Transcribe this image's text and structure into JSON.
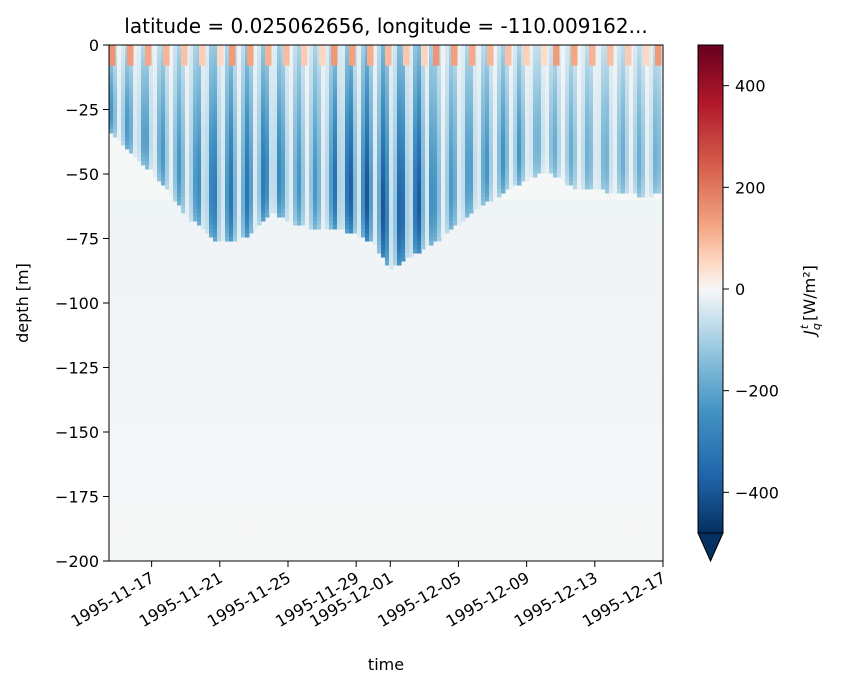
{
  "chart_data": {
    "type": "heatmap",
    "title": "latitude = 0.025062656, longitude = -110.009162...",
    "xlabel": "time",
    "ylabel": "depth [m]",
    "colorbar_label": "J_q^t [W/m²]",
    "colorbar_label_parts": {
      "base": "J",
      "sub": "q",
      "sup": "t",
      "unit": "[W/m²]"
    },
    "colormap": "RdBu_r",
    "colorbar_extend": "min",
    "clim": [
      -480,
      480
    ],
    "xlim": [
      "1995-11-14T12:00",
      "1995-12-17T00:00"
    ],
    "ylim": [
      -200,
      0
    ],
    "x_ticks": [
      "1995-11-17",
      "1995-11-21",
      "1995-11-25",
      "1995-11-29",
      "1995-12-01",
      "1995-12-05",
      "1995-12-09",
      "1995-12-13",
      "1995-12-17"
    ],
    "y_ticks": [
      0,
      -25,
      -50,
      -75,
      -100,
      -125,
      -150,
      -175,
      -200
    ],
    "y_tick_labels": [
      "0",
      "−25",
      "−50",
      "−75",
      "−100",
      "−125",
      "−150",
      "−175",
      "−200"
    ],
    "colorbar_ticks": [
      400,
      200,
      0,
      -200,
      -400
    ],
    "colorbar_tick_labels": [
      "400",
      "200",
      "0",
      "−200",
      "−400"
    ],
    "mixed_layer_base_depth": {
      "x": [
        "1995-11-14T12:00",
        "1995-11-15T12:00",
        "1995-11-17T00:00",
        "1995-11-19T00:00",
        "1995-11-21T00:00",
        "1995-11-22T12:00",
        "1995-11-24T00:00",
        "1995-11-26T00:00",
        "1995-11-28T00:00",
        "1995-11-30T00:00",
        "1995-12-01T00:00",
        "1995-12-02T00:00",
        "1995-12-04T00:00",
        "1995-12-06T00:00",
        "1995-12-08T00:00",
        "1995-12-10T00:00",
        "1995-12-12T00:00",
        "1995-12-14T00:00",
        "1995-12-16T00:00",
        "1995-12-17T00:00"
      ],
      "y": [
        -32,
        -40,
        -48,
        -65,
        -76,
        -74,
        -64,
        -70,
        -70,
        -76,
        -86,
        -82,
        -74,
        -63,
        -55,
        -48,
        -55,
        -56,
        -58,
        -56
      ]
    },
    "surface_heating_band": {
      "depth_range": [
        0,
        -5
      ],
      "value": 150
    },
    "grid": false,
    "legend": "none"
  }
}
